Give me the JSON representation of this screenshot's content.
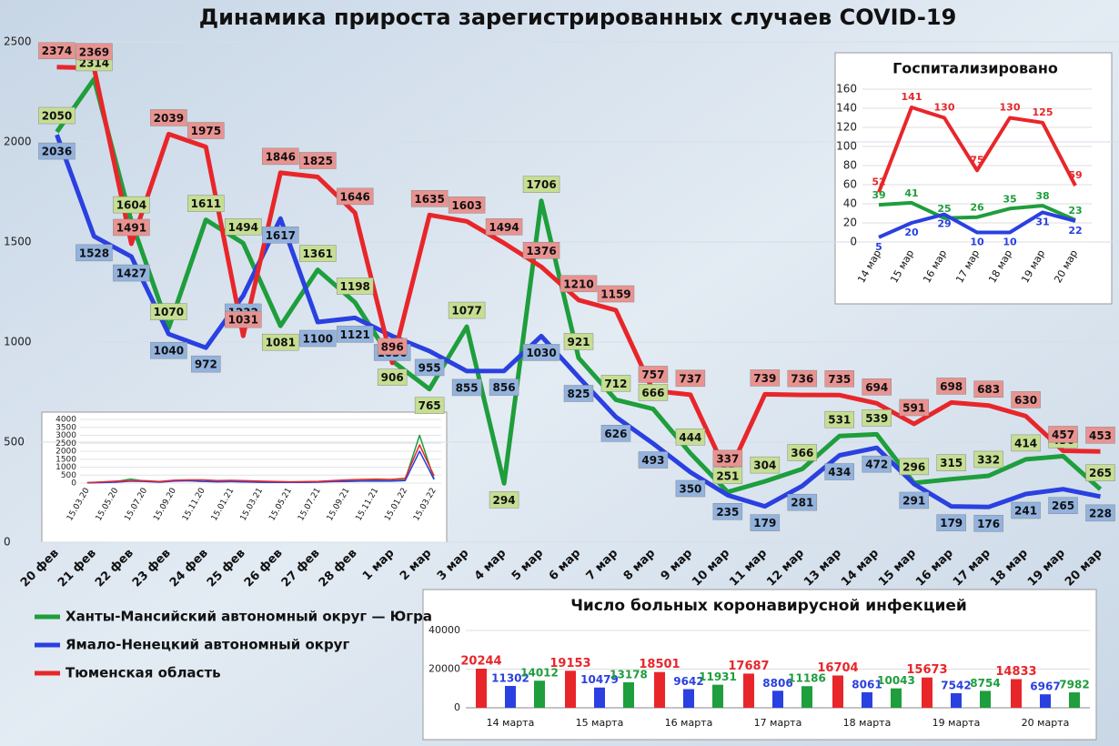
{
  "chart_data": [
    {
      "type": "line",
      "title": "Динамика прироста зарегистрированных случаев COVID-19",
      "categories": [
        "20 фев",
        "21 фев",
        "22 фев",
        "23 фев",
        "24 фев",
        "25 фев",
        "26 фев",
        "27 фев",
        "28 фев",
        "1 мар",
        "2 мар",
        "3 мар",
        "4 мар",
        "5 мар",
        "6 мар",
        "7 мар",
        "8 мар",
        "9 мар",
        "10 мар",
        "11 мар",
        "12 мар",
        "13 мар",
        "14 мар",
        "15 мар",
        "16 мар",
        "17 мар",
        "18 мар",
        "19 мар",
        "20 мар"
      ],
      "series": [
        {
          "name": "Ханты-Мансийский автономный округ — Югра",
          "color": "#1e9e3c",
          "values": [
            2050,
            2314,
            1604,
            1070,
            1611,
            1494,
            1081,
            1361,
            1198,
            906,
            765,
            1077,
            294,
            1706,
            921,
            712,
            666,
            444,
            251,
            304,
            366,
            531,
            539,
            296,
            315,
            332,
            414,
            430,
            265
          ]
        },
        {
          "name": "Ямало-Ненецкий автономный округ",
          "color": "#2a40e0",
          "values": [
            2036,
            1528,
            1427,
            1040,
            972,
            1232,
            1617,
            1100,
            1121,
            1030,
            955,
            855,
            856,
            1030,
            825,
            626,
            493,
            350,
            235,
            179,
            281,
            434,
            472,
            291,
            179,
            176,
            241,
            265,
            228
          ]
        },
        {
          "name": "Тюменская область",
          "color": "#e8262a",
          "values": [
            2374,
            2369,
            1491,
            2039,
            1975,
            1031,
            1846,
            1825,
            1646,
            896,
            1635,
            1603,
            1494,
            1376,
            1210,
            1159,
            757,
            737,
            337,
            739,
            736,
            735,
            694,
            591,
            698,
            683,
            630,
            457,
            453
          ]
        }
      ],
      "ylim": [
        0,
        2500
      ],
      "yticks": [
        0,
        500,
        1000,
        1500,
        2000,
        2500
      ],
      "grid": true,
      "legend": "bottom-left"
    },
    {
      "type": "line",
      "title": "Госпитализировано",
      "categories": [
        "14 мар",
        "15 мар",
        "16 мар",
        "17 мар",
        "18 мар",
        "19 мар",
        "20 мар"
      ],
      "series": [
        {
          "color": "#e8262a",
          "values": [
            52,
            141,
            130,
            75,
            130,
            125,
            59
          ]
        },
        {
          "color": "#1e9e3c",
          "values": [
            39,
            41,
            25,
            26,
            35,
            38,
            23
          ]
        },
        {
          "color": "#2a40e0",
          "values": [
            5,
            20,
            29,
            10,
            10,
            31,
            22
          ]
        }
      ],
      "ylim": [
        0,
        160
      ],
      "yticks": [
        0,
        20,
        40,
        60,
        80,
        100,
        120,
        140,
        160
      ],
      "grid": true
    },
    {
      "type": "line",
      "categories": [
        "15.03.20",
        null,
        "15.05.20",
        null,
        "15.07.20",
        null,
        "15.09.20",
        null,
        "15.11.20",
        null,
        "15.01.21",
        null,
        "15.03.21",
        null,
        "15.05.21",
        null,
        "15.07.21",
        null,
        "15.09.21",
        null,
        "15.11.21",
        null,
        "15.01.22",
        null,
        "15.03.22"
      ],
      "series": [
        {
          "color": "#1e9e3c",
          "values": [
            20,
            60,
            100,
            250,
            120,
            80,
            150,
            140,
            100,
            90,
            100,
            80,
            60,
            50,
            40,
            50,
            80,
            120,
            130,
            150,
            160,
            150,
            200,
            3000,
            250
          ]
        },
        {
          "color": "#2a40e0",
          "values": [
            10,
            30,
            60,
            120,
            100,
            60,
            120,
            150,
            110,
            80,
            90,
            70,
            50,
            40,
            40,
            40,
            60,
            90,
            100,
            120,
            130,
            120,
            150,
            2000,
            230
          ]
        },
        {
          "color": "#e8262a",
          "values": [
            30,
            70,
            120,
            150,
            150,
            100,
            180,
            200,
            200,
            160,
            170,
            150,
            120,
            100,
            80,
            90,
            110,
            160,
            200,
            230,
            250,
            230,
            300,
            2400,
            450
          ]
        }
      ],
      "ylim": [
        0,
        4000
      ],
      "yticks": [
        0,
        500,
        1000,
        1500,
        2000,
        2500,
        3000,
        3500,
        4000
      ],
      "grid": true
    },
    {
      "type": "bar",
      "title": "Число больных  коронавирусной  инфекцией",
      "categories": [
        "14 марта",
        "15 марта",
        "16 марта",
        "17 марта",
        "18 марта",
        "19 марта",
        "20 марта"
      ],
      "series": [
        {
          "color": "#e8262a",
          "values": [
            20244,
            19153,
            18501,
            17687,
            16704,
            15673,
            14833
          ]
        },
        {
          "color": "#2a40e0",
          "values": [
            11302,
            10479,
            9642,
            8806,
            8061,
            7542,
            6967
          ]
        },
        {
          "color": "#1e9e3c",
          "values": [
            14012,
            13178,
            11931,
            11186,
            10043,
            8754,
            7982
          ]
        }
      ],
      "ylim": [
        0,
        40000
      ],
      "yticks": [
        0,
        20000,
        40000
      ],
      "grid": true
    }
  ]
}
